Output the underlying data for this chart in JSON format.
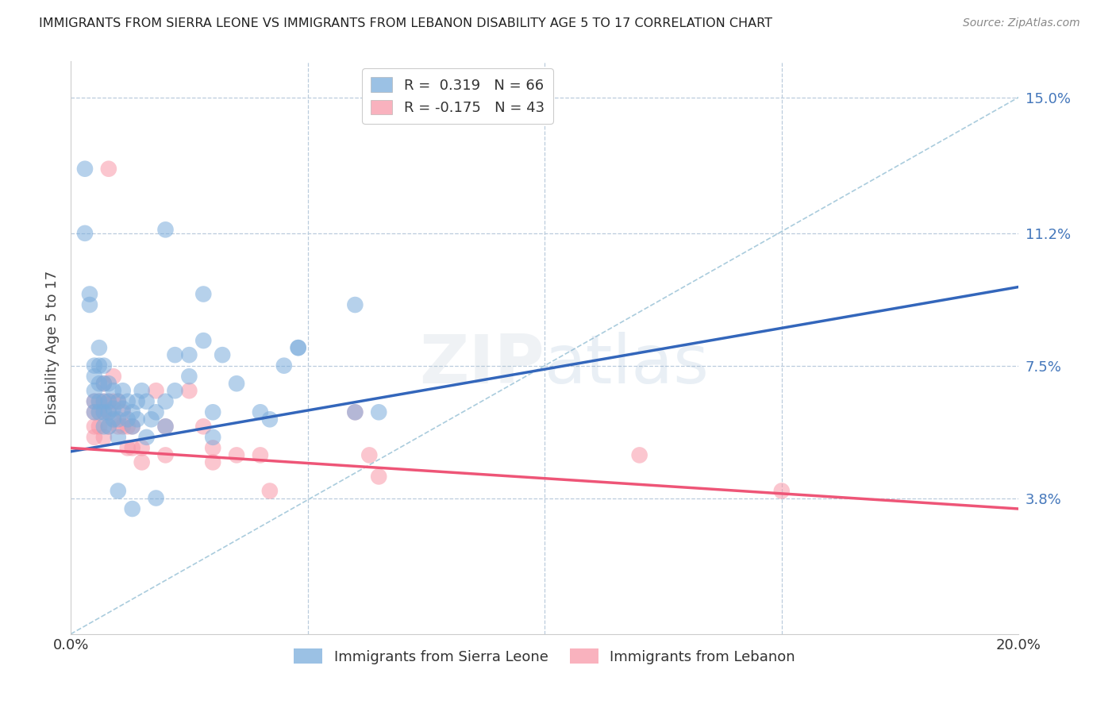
{
  "title": "IMMIGRANTS FROM SIERRA LEONE VS IMMIGRANTS FROM LEBANON DISABILITY AGE 5 TO 17 CORRELATION CHART",
  "source": "Source: ZipAtlas.com",
  "ylabel": "Disability Age 5 to 17",
  "xlim": [
    0.0,
    0.2
  ],
  "ylim": [
    0.0,
    0.16
  ],
  "ytick_vals": [
    0.038,
    0.075,
    0.112,
    0.15
  ],
  "ytick_labels": [
    "3.8%",
    "7.5%",
    "11.2%",
    "15.0%"
  ],
  "xtick_vals": [
    0.0,
    0.05,
    0.1,
    0.15,
    0.2
  ],
  "xtick_labels": [
    "0.0%",
    "",
    "",
    "",
    "20.0%"
  ],
  "sierra_leone_color": "#7AACDC",
  "lebanon_color": "#F898A8",
  "sierra_leone_line_color": "#3366BB",
  "lebanon_line_color": "#EE5577",
  "diagonal_color": "#AACCDD",
  "watermark": "ZIPatlas",
  "sl_line_x": [
    0.0,
    0.2
  ],
  "sl_line_y": [
    0.051,
    0.097
  ],
  "lb_line_x": [
    0.0,
    0.2
  ],
  "lb_line_y": [
    0.052,
    0.035
  ],
  "sierra_leone_points": [
    [
      0.003,
      0.13
    ],
    [
      0.003,
      0.112
    ],
    [
      0.004,
      0.095
    ],
    [
      0.004,
      0.092
    ],
    [
      0.005,
      0.075
    ],
    [
      0.005,
      0.072
    ],
    [
      0.005,
      0.068
    ],
    [
      0.005,
      0.065
    ],
    [
      0.005,
      0.062
    ],
    [
      0.006,
      0.08
    ],
    [
      0.006,
      0.075
    ],
    [
      0.006,
      0.07
    ],
    [
      0.006,
      0.065
    ],
    [
      0.006,
      0.062
    ],
    [
      0.007,
      0.075
    ],
    [
      0.007,
      0.07
    ],
    [
      0.007,
      0.065
    ],
    [
      0.007,
      0.062
    ],
    [
      0.007,
      0.058
    ],
    [
      0.008,
      0.07
    ],
    [
      0.008,
      0.065
    ],
    [
      0.008,
      0.062
    ],
    [
      0.008,
      0.058
    ],
    [
      0.009,
      0.068
    ],
    [
      0.009,
      0.063
    ],
    [
      0.009,
      0.06
    ],
    [
      0.01,
      0.065
    ],
    [
      0.01,
      0.06
    ],
    [
      0.01,
      0.055
    ],
    [
      0.01,
      0.04
    ],
    [
      0.011,
      0.068
    ],
    [
      0.011,
      0.063
    ],
    [
      0.012,
      0.065
    ],
    [
      0.012,
      0.06
    ],
    [
      0.013,
      0.062
    ],
    [
      0.013,
      0.058
    ],
    [
      0.013,
      0.035
    ],
    [
      0.014,
      0.065
    ],
    [
      0.014,
      0.06
    ],
    [
      0.015,
      0.068
    ],
    [
      0.016,
      0.065
    ],
    [
      0.016,
      0.055
    ],
    [
      0.017,
      0.06
    ],
    [
      0.018,
      0.062
    ],
    [
      0.018,
      0.038
    ],
    [
      0.02,
      0.065
    ],
    [
      0.02,
      0.058
    ],
    [
      0.022,
      0.078
    ],
    [
      0.022,
      0.068
    ],
    [
      0.025,
      0.078
    ],
    [
      0.025,
      0.072
    ],
    [
      0.028,
      0.082
    ],
    [
      0.03,
      0.062
    ],
    [
      0.03,
      0.055
    ],
    [
      0.032,
      0.078
    ],
    [
      0.035,
      0.07
    ],
    [
      0.04,
      0.062
    ],
    [
      0.042,
      0.06
    ],
    [
      0.045,
      0.075
    ],
    [
      0.048,
      0.08
    ],
    [
      0.06,
      0.092
    ],
    [
      0.065,
      0.062
    ],
    [
      0.02,
      0.113
    ],
    [
      0.028,
      0.095
    ],
    [
      0.048,
      0.08
    ],
    [
      0.06,
      0.062
    ]
  ],
  "lebanon_points": [
    [
      0.005,
      0.065
    ],
    [
      0.005,
      0.062
    ],
    [
      0.005,
      0.058
    ],
    [
      0.005,
      0.055
    ],
    [
      0.006,
      0.065
    ],
    [
      0.006,
      0.062
    ],
    [
      0.006,
      0.058
    ],
    [
      0.007,
      0.07
    ],
    [
      0.007,
      0.065
    ],
    [
      0.007,
      0.062
    ],
    [
      0.007,
      0.055
    ],
    [
      0.008,
      0.065
    ],
    [
      0.008,
      0.062
    ],
    [
      0.008,
      0.058
    ],
    [
      0.009,
      0.072
    ],
    [
      0.009,
      0.065
    ],
    [
      0.009,
      0.06
    ],
    [
      0.01,
      0.065
    ],
    [
      0.01,
      0.058
    ],
    [
      0.011,
      0.062
    ],
    [
      0.011,
      0.058
    ],
    [
      0.012,
      0.058
    ],
    [
      0.012,
      0.052
    ],
    [
      0.013,
      0.058
    ],
    [
      0.013,
      0.052
    ],
    [
      0.015,
      0.052
    ],
    [
      0.015,
      0.048
    ],
    [
      0.018,
      0.068
    ],
    [
      0.02,
      0.058
    ],
    [
      0.02,
      0.05
    ],
    [
      0.025,
      0.068
    ],
    [
      0.028,
      0.058
    ],
    [
      0.03,
      0.052
    ],
    [
      0.03,
      0.048
    ],
    [
      0.035,
      0.05
    ],
    [
      0.04,
      0.05
    ],
    [
      0.042,
      0.04
    ],
    [
      0.06,
      0.062
    ],
    [
      0.063,
      0.05
    ],
    [
      0.065,
      0.044
    ],
    [
      0.12,
      0.05
    ],
    [
      0.15,
      0.04
    ],
    [
      0.008,
      0.13
    ]
  ]
}
